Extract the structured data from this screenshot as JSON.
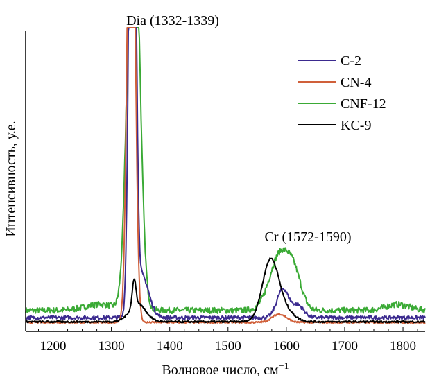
{
  "chart_data": {
    "type": "line",
    "title": "",
    "xlabel": "Волновое число, см",
    "xlabel_superscript": "−1",
    "ylabel": "Интенсивность, у.е.",
    "xlim": [
      1153,
      1838
    ],
    "ylim": [
      0,
      100
    ],
    "x_ticks": [
      1200,
      1300,
      1400,
      1500,
      1600,
      1700,
      1800
    ],
    "x_tick_labels": [
      "1200",
      "1300",
      "1400",
      "1500",
      "1600",
      "1700",
      "1800"
    ],
    "grid": false,
    "legend_position": "top-right",
    "annotations": [
      {
        "text": "Dia (1332-1339)",
        "x": 1340,
        "near": "top, above diamond peak"
      },
      {
        "text": "Cr (1572-1590)",
        "x": 1582,
        "near": "above Cr peaks"
      }
    ],
    "series_model_note": "Each series = baseline + sum of Gaussian peaks (center, height, sigma) in data units; intensities above ylim are clipped",
    "series": [
      {
        "name": "C-2",
        "color": "#3b2a8f",
        "baseline": 4.6,
        "noise": 0.6,
        "peaks": [
          {
            "center": 1336,
            "height": 250,
            "sigma": 5
          },
          {
            "center": 1352,
            "height": 14,
            "sigma": 12
          },
          {
            "center": 1594,
            "height": 9.5,
            "sigma": 10
          },
          {
            "center": 1620,
            "height": 4,
            "sigma": 10
          }
        ]
      },
      {
        "name": "CN-4",
        "color": "#d0603a",
        "baseline": 3.0,
        "noise": 0.3,
        "peaks": [
          {
            "center": 1334,
            "height": 200,
            "sigma": 6
          },
          {
            "center": 1588,
            "height": 2.8,
            "sigma": 12
          }
        ]
      },
      {
        "name": "CNF-12",
        "color": "#3aaa35",
        "baseline": 7.0,
        "noise": 1.0,
        "peaks": [
          {
            "center": 1280,
            "height": 2,
            "sigma": 25
          },
          {
            "center": 1338,
            "height": 150,
            "sigma": 10
          },
          {
            "center": 1590,
            "height": 19,
            "sigma": 18
          },
          {
            "center": 1615,
            "height": 8,
            "sigma": 12
          },
          {
            "center": 1790,
            "height": 2,
            "sigma": 20
          }
        ]
      },
      {
        "name": "KC-9",
        "color": "#000000",
        "baseline": 3.2,
        "noise": 0.3,
        "peaks": [
          {
            "center": 1339,
            "height": 9,
            "sigma": 3
          },
          {
            "center": 1345,
            "height": 6,
            "sigma": 14
          },
          {
            "center": 1573,
            "height": 20.5,
            "sigma": 14
          },
          {
            "center": 1600,
            "height": 3,
            "sigma": 15
          }
        ]
      }
    ]
  }
}
